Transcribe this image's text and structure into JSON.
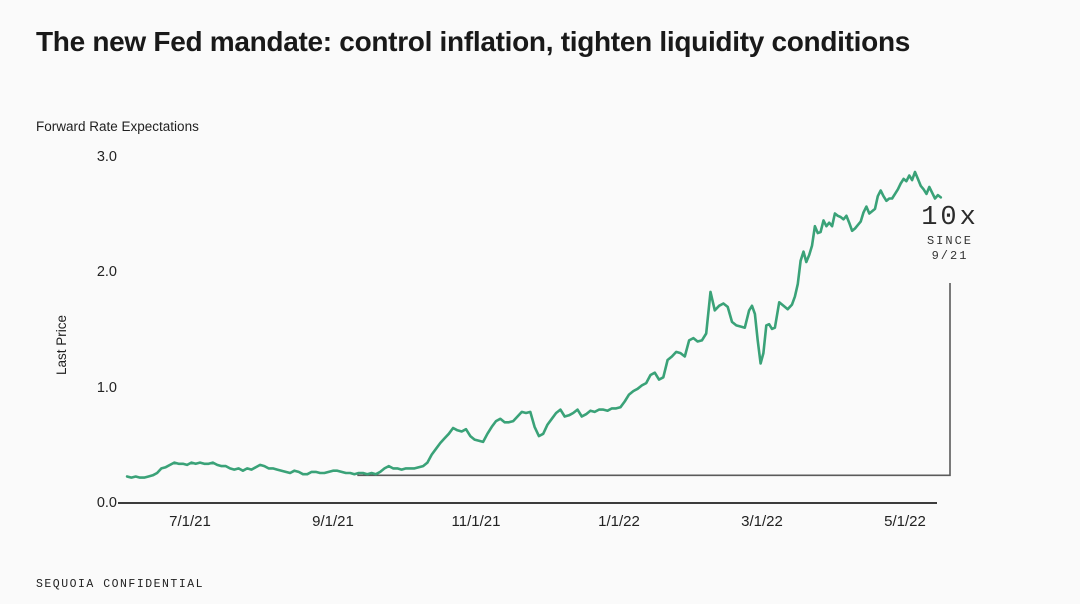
{
  "page": {
    "title": "The new Fed mandate: control inflation, tighten liquidity conditions",
    "footer": "SEQUOIA CONFIDENTIAL"
  },
  "chart_data": {
    "type": "line",
    "title": "Forward Rate Expectations",
    "xlabel": "",
    "ylabel": "Last Price",
    "x_unit": "months since 6/1/2021",
    "xlim": [
      0,
      11.6
    ],
    "ylim": [
      0,
      3.0
    ],
    "grid": false,
    "legend": "none",
    "line_color": "#3aa278",
    "axis_color": "#3c3c3c",
    "bracket_color": "#5a5a5a",
    "x_ticks": [
      {
        "m": 1,
        "label": "7/1/21"
      },
      {
        "m": 3,
        "label": "9/1/21"
      },
      {
        "m": 5,
        "label": "11/1/21"
      },
      {
        "m": 7,
        "label": "1/1/22"
      },
      {
        "m": 9,
        "label": "3/1/22"
      },
      {
        "m": 11,
        "label": "5/1/22"
      }
    ],
    "y_ticks": [
      {
        "v": 0,
        "label": "0.0"
      },
      {
        "v": 1,
        "label": "1.0"
      },
      {
        "v": 2,
        "label": "2.0"
      },
      {
        "v": 3,
        "label": "3.0"
      }
    ],
    "series": [
      {
        "name": "Forward Rate Expectations",
        "points": [
          [
            0.12,
            0.23
          ],
          [
            0.18,
            0.22
          ],
          [
            0.24,
            0.23
          ],
          [
            0.3,
            0.22
          ],
          [
            0.36,
            0.22
          ],
          [
            0.42,
            0.23
          ],
          [
            0.48,
            0.24
          ],
          [
            0.54,
            0.26
          ],
          [
            0.6,
            0.3
          ],
          [
            0.66,
            0.31
          ],
          [
            0.72,
            0.33
          ],
          [
            0.78,
            0.35
          ],
          [
            0.84,
            0.34
          ],
          [
            0.9,
            0.34
          ],
          [
            0.96,
            0.33
          ],
          [
            1.02,
            0.35
          ],
          [
            1.08,
            0.34
          ],
          [
            1.14,
            0.35
          ],
          [
            1.2,
            0.34
          ],
          [
            1.26,
            0.34
          ],
          [
            1.32,
            0.35
          ],
          [
            1.38,
            0.33
          ],
          [
            1.44,
            0.32
          ],
          [
            1.5,
            0.32
          ],
          [
            1.56,
            0.3
          ],
          [
            1.62,
            0.29
          ],
          [
            1.68,
            0.3
          ],
          [
            1.74,
            0.28
          ],
          [
            1.8,
            0.3
          ],
          [
            1.86,
            0.29
          ],
          [
            1.92,
            0.31
          ],
          [
            1.98,
            0.33
          ],
          [
            2.04,
            0.32
          ],
          [
            2.1,
            0.3
          ],
          [
            2.16,
            0.3
          ],
          [
            2.22,
            0.29
          ],
          [
            2.28,
            0.28
          ],
          [
            2.34,
            0.27
          ],
          [
            2.4,
            0.26
          ],
          [
            2.46,
            0.28
          ],
          [
            2.52,
            0.27
          ],
          [
            2.58,
            0.25
          ],
          [
            2.64,
            0.25
          ],
          [
            2.7,
            0.27
          ],
          [
            2.76,
            0.27
          ],
          [
            2.82,
            0.26
          ],
          [
            2.88,
            0.26
          ],
          [
            2.94,
            0.27
          ],
          [
            3.0,
            0.28
          ],
          [
            3.06,
            0.28
          ],
          [
            3.12,
            0.27
          ],
          [
            3.18,
            0.26
          ],
          [
            3.24,
            0.26
          ],
          [
            3.3,
            0.25
          ],
          [
            3.36,
            0.26
          ],
          [
            3.42,
            0.26
          ],
          [
            3.48,
            0.25
          ],
          [
            3.54,
            0.26
          ],
          [
            3.6,
            0.25
          ],
          [
            3.66,
            0.27
          ],
          [
            3.72,
            0.3
          ],
          [
            3.78,
            0.32
          ],
          [
            3.84,
            0.3
          ],
          [
            3.9,
            0.3
          ],
          [
            3.96,
            0.29
          ],
          [
            4.02,
            0.3
          ],
          [
            4.08,
            0.3
          ],
          [
            4.14,
            0.3
          ],
          [
            4.2,
            0.31
          ],
          [
            4.26,
            0.32
          ],
          [
            4.32,
            0.35
          ],
          [
            4.38,
            0.42
          ],
          [
            4.44,
            0.47
          ],
          [
            4.5,
            0.52
          ],
          [
            4.56,
            0.56
          ],
          [
            4.62,
            0.6
          ],
          [
            4.68,
            0.65
          ],
          [
            4.74,
            0.63
          ],
          [
            4.8,
            0.62
          ],
          [
            4.86,
            0.64
          ],
          [
            4.92,
            0.58
          ],
          [
            4.98,
            0.55
          ],
          [
            5.04,
            0.54
          ],
          [
            5.1,
            0.53
          ],
          [
            5.16,
            0.6
          ],
          [
            5.22,
            0.66
          ],
          [
            5.28,
            0.71
          ],
          [
            5.34,
            0.73
          ],
          [
            5.4,
            0.7
          ],
          [
            5.46,
            0.7
          ],
          [
            5.52,
            0.71
          ],
          [
            5.58,
            0.75
          ],
          [
            5.64,
            0.79
          ],
          [
            5.7,
            0.78
          ],
          [
            5.76,
            0.79
          ],
          [
            5.82,
            0.66
          ],
          [
            5.88,
            0.58
          ],
          [
            5.94,
            0.6
          ],
          [
            6.0,
            0.68
          ],
          [
            6.06,
            0.73
          ],
          [
            6.12,
            0.78
          ],
          [
            6.18,
            0.81
          ],
          [
            6.24,
            0.75
          ],
          [
            6.3,
            0.76
          ],
          [
            6.36,
            0.78
          ],
          [
            6.42,
            0.81
          ],
          [
            6.48,
            0.75
          ],
          [
            6.54,
            0.77
          ],
          [
            6.6,
            0.8
          ],
          [
            6.66,
            0.79
          ],
          [
            6.72,
            0.81
          ],
          [
            6.78,
            0.81
          ],
          [
            6.84,
            0.8
          ],
          [
            6.9,
            0.82
          ],
          [
            6.96,
            0.82
          ],
          [
            7.02,
            0.83
          ],
          [
            7.08,
            0.88
          ],
          [
            7.14,
            0.94
          ],
          [
            7.2,
            0.97
          ],
          [
            7.26,
            0.99
          ],
          [
            7.32,
            1.02
          ],
          [
            7.38,
            1.04
          ],
          [
            7.44,
            1.11
          ],
          [
            7.5,
            1.13
          ],
          [
            7.56,
            1.07
          ],
          [
            7.62,
            1.09
          ],
          [
            7.68,
            1.24
          ],
          [
            7.74,
            1.27
          ],
          [
            7.8,
            1.31
          ],
          [
            7.86,
            1.3
          ],
          [
            7.92,
            1.27
          ],
          [
            7.98,
            1.41
          ],
          [
            8.04,
            1.43
          ],
          [
            8.1,
            1.4
          ],
          [
            8.16,
            1.41
          ],
          [
            8.22,
            1.47
          ],
          [
            8.28,
            1.83
          ],
          [
            8.34,
            1.67
          ],
          [
            8.4,
            1.71
          ],
          [
            8.46,
            1.73
          ],
          [
            8.52,
            1.7
          ],
          [
            8.58,
            1.57
          ],
          [
            8.64,
            1.54
          ],
          [
            8.7,
            1.53
          ],
          [
            8.76,
            1.52
          ],
          [
            8.82,
            1.67
          ],
          [
            8.86,
            1.71
          ],
          [
            8.9,
            1.64
          ],
          [
            8.94,
            1.41
          ],
          [
            8.98,
            1.21
          ],
          [
            9.02,
            1.3
          ],
          [
            9.06,
            1.54
          ],
          [
            9.1,
            1.55
          ],
          [
            9.14,
            1.51
          ],
          [
            9.18,
            1.52
          ],
          [
            9.24,
            1.74
          ],
          [
            9.3,
            1.71
          ],
          [
            9.36,
            1.68
          ],
          [
            9.42,
            1.72
          ],
          [
            9.46,
            1.79
          ],
          [
            9.5,
            1.9
          ],
          [
            9.54,
            2.1
          ],
          [
            9.58,
            2.18
          ],
          [
            9.62,
            2.09
          ],
          [
            9.66,
            2.15
          ],
          [
            9.7,
            2.23
          ],
          [
            9.74,
            2.4
          ],
          [
            9.78,
            2.34
          ],
          [
            9.82,
            2.35
          ],
          [
            9.86,
            2.45
          ],
          [
            9.9,
            2.4
          ],
          [
            9.94,
            2.43
          ],
          [
            9.98,
            2.4
          ],
          [
            10.02,
            2.51
          ],
          [
            10.06,
            2.49
          ],
          [
            10.1,
            2.48
          ],
          [
            10.14,
            2.46
          ],
          [
            10.18,
            2.49
          ],
          [
            10.22,
            2.43
          ],
          [
            10.26,
            2.36
          ],
          [
            10.3,
            2.38
          ],
          [
            10.34,
            2.41
          ],
          [
            10.38,
            2.44
          ],
          [
            10.42,
            2.52
          ],
          [
            10.46,
            2.57
          ],
          [
            10.5,
            2.51
          ],
          [
            10.54,
            2.53
          ],
          [
            10.58,
            2.55
          ],
          [
            10.62,
            2.66
          ],
          [
            10.66,
            2.71
          ],
          [
            10.7,
            2.66
          ],
          [
            10.74,
            2.62
          ],
          [
            10.78,
            2.64
          ],
          [
            10.82,
            2.64
          ],
          [
            10.86,
            2.68
          ],
          [
            10.9,
            2.72
          ],
          [
            10.94,
            2.77
          ],
          [
            10.98,
            2.81
          ],
          [
            11.02,
            2.79
          ],
          [
            11.06,
            2.84
          ],
          [
            11.1,
            2.8
          ],
          [
            11.14,
            2.87
          ],
          [
            11.18,
            2.81
          ],
          [
            11.22,
            2.75
          ],
          [
            11.26,
            2.72
          ],
          [
            11.3,
            2.68
          ],
          [
            11.34,
            2.74
          ],
          [
            11.38,
            2.69
          ],
          [
            11.42,
            2.64
          ],
          [
            11.46,
            2.67
          ],
          [
            11.5,
            2.65
          ]
        ]
      }
    ],
    "annotation": {
      "headline": "10x",
      "line2": "SINCE",
      "line3": "9/21",
      "bracket_from": {
        "m": 3.34,
        "v": 0.24
      },
      "bracket_note": "vertical riser at right end pointing to the 10x label"
    }
  }
}
